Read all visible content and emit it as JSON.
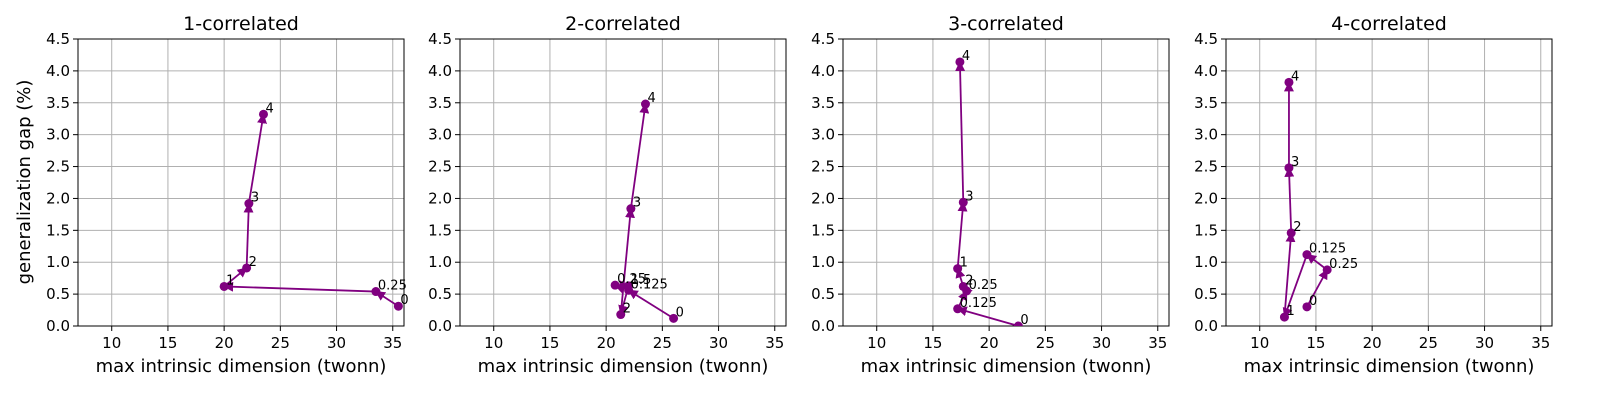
{
  "ylabel": "generalization gap (%)",
  "xlabel": "max intrinsic dimension (twonn)",
  "color": "#800080",
  "xlim": [
    7,
    36
  ],
  "ylim": [
    0,
    4.5
  ],
  "xticks": [
    "10",
    "15",
    "20",
    "25",
    "30",
    "35"
  ],
  "yticks": [
    "0.0",
    "0.5",
    "1.0",
    "1.5",
    "2.0",
    "2.5",
    "3.0",
    "3.5",
    "4.0",
    "4.5"
  ],
  "chart_data": [
    {
      "type": "line",
      "title": "1-correlated",
      "points": [
        {
          "label": "0",
          "x": 35.5,
          "y": 0.31
        },
        {
          "label": "0.25",
          "x": 33.5,
          "y": 0.54
        },
        {
          "label": "1",
          "x": 20.0,
          "y": 0.62
        },
        {
          "label": "2",
          "x": 22.0,
          "y": 0.91
        },
        {
          "label": "3",
          "x": 22.2,
          "y": 1.92
        },
        {
          "label": "4",
          "x": 23.5,
          "y": 3.32
        }
      ]
    },
    {
      "type": "line",
      "title": "2-correlated",
      "points": [
        {
          "label": "0",
          "x": 26.0,
          "y": 0.12
        },
        {
          "label": "0.125",
          "x": 22.0,
          "y": 0.56
        },
        {
          "label": "0.25",
          "x": 20.8,
          "y": 0.64
        },
        {
          "label": "1.5",
          "x": 22.0,
          "y": 0.63
        },
        {
          "label": "2",
          "x": 21.3,
          "y": 0.18
        },
        {
          "label": "3",
          "x": 22.2,
          "y": 1.84
        },
        {
          "label": "4",
          "x": 23.5,
          "y": 3.48
        }
      ]
    },
    {
      "type": "line",
      "title": "3-correlated",
      "points": [
        {
          "label": "0",
          "x": 22.6,
          "y": 0.0
        },
        {
          "label": "0.125",
          "x": 17.2,
          "y": 0.27
        },
        {
          "label": "0.25",
          "x": 18.0,
          "y": 0.55
        },
        {
          "label": "2",
          "x": 17.7,
          "y": 0.62
        },
        {
          "label": "1",
          "x": 17.2,
          "y": 0.9
        },
        {
          "label": "3",
          "x": 17.7,
          "y": 1.94
        },
        {
          "label": "4",
          "x": 17.4,
          "y": 4.14
        }
      ]
    },
    {
      "type": "line",
      "title": "4-correlated",
      "points": [
        {
          "label": "0",
          "x": 14.2,
          "y": 0.3
        },
        {
          "label": "0.25",
          "x": 16.0,
          "y": 0.88
        },
        {
          "label": "0.125",
          "x": 14.2,
          "y": 1.12
        },
        {
          "label": "1",
          "x": 12.2,
          "y": 0.14
        },
        {
          "label": "2",
          "x": 12.8,
          "y": 1.46
        },
        {
          "label": "3",
          "x": 12.6,
          "y": 2.48
        },
        {
          "label": "4",
          "x": 12.6,
          "y": 3.82
        }
      ]
    }
  ]
}
